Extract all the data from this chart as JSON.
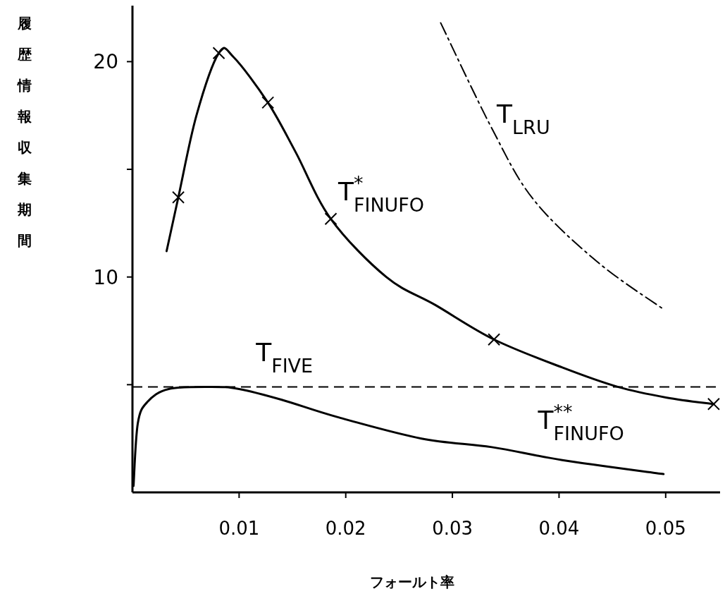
{
  "chart_data": {
    "type": "line",
    "xlabel": "フォールト率",
    "ylabel": "履歴情報収集期間",
    "xlim": [
      0,
      0.0551
    ],
    "ylim": [
      0,
      22.6
    ],
    "xticks": [
      0.01,
      0.02,
      0.03,
      0.04,
      0.05
    ],
    "yticks": [
      {
        "value": 5,
        "label": null
      },
      10,
      {
        "value": 15,
        "label": null
      },
      20
    ],
    "grid": false,
    "series": [
      {
        "color": "#000000",
        "line_style": "solid",
        "x": [
          0.0032,
          0.0043,
          0.006,
          0.0081,
          0.0095,
          0.0127,
          0.0153,
          0.0186,
          0.0238,
          0.0284,
          0.0339,
          0.0403,
          0.0455,
          0.0501,
          0.0545
        ],
        "values": [
          11.2,
          13.7,
          17.5,
          20.4,
          20.2,
          18.1,
          15.8,
          12.7,
          10.0,
          8.7,
          7.1,
          5.8,
          4.9,
          4.4,
          4.1
        ]
      },
      {
        "type": "scatter",
        "marker": "cross",
        "color": "#000000",
        "x": [
          0.0043,
          0.0081,
          0.0127,
          0.0186,
          0.0339,
          0.0545
        ],
        "values": [
          13.7,
          20.4,
          18.1,
          12.7,
          7.1,
          4.1
        ]
      },
      {
        "color": "#000000",
        "line_style": "dashdot",
        "x": [
          0.0289,
          0.0337,
          0.0376,
          0.0436,
          0.0498
        ],
        "values": [
          21.8,
          16.9,
          13.6,
          10.7,
          8.5
        ]
      },
      {
        "color": "#000000",
        "line_style": "solid",
        "x": [
          0.0001,
          0.0005,
          0.0014,
          0.0034,
          0.0074,
          0.01,
          0.014,
          0.0192,
          0.0271,
          0.0337,
          0.0403,
          0.0498
        ],
        "values": [
          0.3,
          3.2,
          4.2,
          4.8,
          4.9,
          4.8,
          4.3,
          3.5,
          2.5,
          2.1,
          1.5,
          0.85
        ]
      }
    ],
    "ref_lines": [
      {
        "axis": "y",
        "value": 4.9,
        "line_style": "dashed",
        "color": "#000000"
      }
    ],
    "annotations": [
      "T$_{LRU}$",
      "T$^{*}$$_{FINUFO}$",
      "T$_{FIVE}$",
      "T$^{**}$$_{FINUFO}$"
    ]
  }
}
